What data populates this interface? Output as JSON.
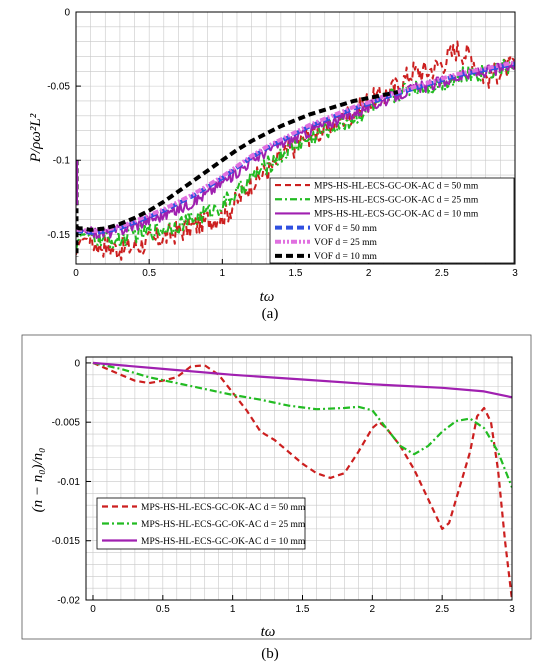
{
  "chart_data": [
    {
      "panel": "a",
      "type": "line",
      "caption": "(a)",
      "xlabel": "tω",
      "ylabel": "P/ρω²L²",
      "xlim": [
        0,
        3
      ],
      "ylim": [
        -0.17,
        0
      ],
      "x_ticks": [
        0,
        0.5,
        1,
        1.5,
        2,
        2.5,
        3
      ],
      "x_tick_labels": [
        "0",
        "0.5",
        "1",
        "1.5",
        "2",
        "2.5",
        "3"
      ],
      "y_ticks": [
        0,
        -0.05,
        -0.1,
        -0.15
      ],
      "y_tick_labels": [
        "0",
        "-0.05",
        "-0.1",
        "-0.15"
      ],
      "grid": true,
      "legend_position": "bottom-right",
      "series": [
        {
          "name": "MPS-HS-HL-ECS-GC-OK-AC d = 50 mm",
          "color": "#cc1f1f",
          "style": "dashed",
          "noise": 0.008,
          "x": [
            0,
            0.02,
            0.05,
            0.1,
            0.2,
            0.3,
            0.4,
            0.5,
            0.6,
            0.7,
            0.8,
            0.9,
            1.0,
            1.1,
            1.2,
            1.3,
            1.4,
            1.5,
            1.6,
            1.7,
            1.8,
            1.9,
            2.0,
            2.1,
            2.2,
            2.3,
            2.4,
            2.5,
            2.6,
            2.7,
            2.8,
            2.9,
            3.0
          ],
          "y": [
            -0.165,
            -0.155,
            -0.152,
            -0.155,
            -0.158,
            -0.16,
            -0.158,
            -0.155,
            -0.152,
            -0.148,
            -0.145,
            -0.14,
            -0.138,
            -0.128,
            -0.115,
            -0.108,
            -0.098,
            -0.09,
            -0.082,
            -0.08,
            -0.072,
            -0.068,
            -0.06,
            -0.057,
            -0.05,
            -0.04,
            -0.04,
            -0.035,
            -0.025,
            -0.03,
            -0.045,
            -0.04,
            -0.035
          ]
        },
        {
          "name": "MPS-HS-HL-ECS-GC-OK-AC d = 25 mm",
          "color": "#22bb22",
          "style": "dashdot",
          "noise": 0.006,
          "x": [
            0,
            0.02,
            0.05,
            0.1,
            0.2,
            0.3,
            0.4,
            0.5,
            0.6,
            0.7,
            0.8,
            0.9,
            1.0,
            1.1,
            1.2,
            1.3,
            1.4,
            1.5,
            1.6,
            1.7,
            1.8,
            1.9,
            2.0,
            2.1,
            2.2,
            2.3,
            2.4,
            2.5,
            2.6,
            2.7,
            2.8,
            2.9,
            3.0
          ],
          "y": [
            -0.16,
            -0.152,
            -0.15,
            -0.152,
            -0.154,
            -0.154,
            -0.15,
            -0.148,
            -0.146,
            -0.143,
            -0.14,
            -0.135,
            -0.13,
            -0.122,
            -0.112,
            -0.104,
            -0.097,
            -0.09,
            -0.085,
            -0.08,
            -0.076,
            -0.072,
            -0.065,
            -0.06,
            -0.055,
            -0.05,
            -0.05,
            -0.048,
            -0.044,
            -0.042,
            -0.04,
            -0.038,
            -0.035
          ]
        },
        {
          "name": "MPS-HS-HL-ECS-GC-OK-AC d = 10 mm",
          "color": "#a020b0",
          "style": "solid",
          "noise": 0.004,
          "x": [
            0,
            0.02,
            0.05,
            0.1,
            0.2,
            0.3,
            0.4,
            0.5,
            0.6,
            0.7,
            0.8,
            0.9,
            1.0,
            1.1,
            1.2,
            1.3,
            1.4,
            1.5,
            1.6,
            1.7,
            1.8,
            1.9,
            2.0,
            2.1,
            2.2,
            2.3,
            2.4,
            2.5,
            2.6,
            2.7,
            2.8,
            2.9,
            3.0
          ],
          "y": [
            -0.15,
            -0.148,
            -0.148,
            -0.149,
            -0.149,
            -0.147,
            -0.144,
            -0.14,
            -0.137,
            -0.133,
            -0.128,
            -0.122,
            -0.115,
            -0.108,
            -0.1,
            -0.094,
            -0.089,
            -0.085,
            -0.08,
            -0.076,
            -0.072,
            -0.068,
            -0.064,
            -0.06,
            -0.056,
            -0.052,
            -0.05,
            -0.047,
            -0.044,
            -0.042,
            -0.04,
            -0.038,
            -0.036
          ]
        },
        {
          "name": "VOF d = 50 mm",
          "color": "#3050e0",
          "style": "thickdash",
          "noise": 0,
          "x": [
            0,
            0.02,
            0.05,
            0.1,
            0.2,
            0.3,
            0.4,
            0.5,
            0.6,
            0.7,
            0.8,
            0.9,
            1.0,
            1.1,
            1.2,
            1.3,
            1.4,
            1.5,
            1.6,
            1.7,
            1.8,
            1.9,
            2.0,
            2.1,
            2.2,
            2.3,
            2.4,
            2.5,
            2.6,
            2.7,
            2.8,
            2.9,
            3.0
          ],
          "y": [
            -0.148,
            -0.148,
            -0.148,
            -0.149,
            -0.148,
            -0.146,
            -0.142,
            -0.138,
            -0.134,
            -0.129,
            -0.124,
            -0.118,
            -0.112,
            -0.105,
            -0.098,
            -0.092,
            -0.087,
            -0.082,
            -0.077,
            -0.073,
            -0.069,
            -0.065,
            -0.062,
            -0.058,
            -0.055,
            -0.052,
            -0.049,
            -0.046,
            -0.043,
            -0.041,
            -0.039,
            -0.037,
            -0.035
          ]
        },
        {
          "name": "VOF d = 25 mm",
          "color": "#e070e0",
          "style": "dashdotdot",
          "noise": 0,
          "x": [
            0,
            0.02,
            0.05,
            0.1,
            0.2,
            0.3,
            0.4,
            0.5,
            0.6,
            0.7,
            0.8,
            0.9,
            1.0,
            1.1,
            1.2,
            1.3,
            1.4,
            1.5,
            1.6,
            1.7,
            1.8,
            1.9,
            2.0,
            2.1,
            2.2,
            2.3,
            2.4,
            2.5,
            2.6,
            2.7,
            2.8,
            2.9,
            3.0
          ],
          "y": [
            -0.147,
            -0.147,
            -0.147,
            -0.148,
            -0.147,
            -0.145,
            -0.141,
            -0.137,
            -0.133,
            -0.128,
            -0.123,
            -0.117,
            -0.111,
            -0.104,
            -0.097,
            -0.091,
            -0.086,
            -0.081,
            -0.076,
            -0.072,
            -0.068,
            -0.064,
            -0.061,
            -0.057,
            -0.054,
            -0.051,
            -0.048,
            -0.045,
            -0.042,
            -0.04,
            -0.038,
            -0.036,
            -0.034
          ]
        },
        {
          "name": "VOF d = 10 mm",
          "color": "#000000",
          "style": "thickdash",
          "noise": 0,
          "x": [
            0,
            0.02,
            0.05,
            0.1,
            0.2,
            0.3,
            0.4,
            0.5,
            0.6,
            0.7,
            0.8,
            0.9,
            1.0,
            1.1,
            1.2,
            1.3,
            1.4,
            1.5,
            1.6,
            1.7,
            1.8,
            1.9,
            2.0,
            2.1,
            2.2
          ],
          "y": [
            -0.145,
            -0.146,
            -0.146,
            -0.147,
            -0.146,
            -0.143,
            -0.139,
            -0.134,
            -0.128,
            -0.121,
            -0.114,
            -0.107,
            -0.1,
            -0.093,
            -0.087,
            -0.082,
            -0.077,
            -0.073,
            -0.069,
            -0.066,
            -0.063,
            -0.06,
            -0.058,
            -0.056,
            -0.054
          ]
        }
      ],
      "spike": {
        "x": 0,
        "y": [
          -0.1,
          -0.165
        ],
        "color": "#000000"
      }
    },
    {
      "panel": "b",
      "type": "line",
      "caption": "(b)",
      "xlabel": "tω",
      "ylabel": "(n − n₀)/n₀",
      "xlim": [
        -0.05,
        3
      ],
      "ylim": [
        -0.02,
        0.0005
      ],
      "x_ticks": [
        0,
        0.5,
        1,
        1.5,
        2,
        2.5,
        3
      ],
      "x_tick_labels": [
        "0",
        "0.5",
        "1",
        "1.5",
        "2",
        "2.5",
        "3"
      ],
      "y_ticks": [
        0,
        -0.005,
        -0.01,
        -0.015,
        -0.02
      ],
      "y_tick_labels": [
        "0",
        "-0.005",
        "-0.01",
        "-0.015",
        "-0.02"
      ],
      "grid": true,
      "legend_position": "bottom-left",
      "series": [
        {
          "name": "MPS-HS-HL-ECS-GC-OK-AC d = 50 mm",
          "color": "#cc1f1f",
          "style": "dashed",
          "x": [
            0,
            0.1,
            0.2,
            0.3,
            0.4,
            0.5,
            0.6,
            0.7,
            0.8,
            0.9,
            1.0,
            1.1,
            1.2,
            1.3,
            1.4,
            1.5,
            1.6,
            1.7,
            1.8,
            1.9,
            2.0,
            2.05,
            2.1,
            2.2,
            2.3,
            2.4,
            2.5,
            2.55,
            2.6,
            2.7,
            2.75,
            2.8,
            2.85,
            2.9,
            2.95,
            3.0
          ],
          "y": [
            0,
            -0.0005,
            -0.001,
            -0.0015,
            -0.0017,
            -0.0015,
            -0.0012,
            -0.0003,
            -0.0002,
            -0.001,
            -0.0025,
            -0.004,
            -0.0058,
            -0.0065,
            -0.0075,
            -0.0085,
            -0.0093,
            -0.0097,
            -0.0093,
            -0.0075,
            -0.0055,
            -0.005,
            -0.0055,
            -0.007,
            -0.009,
            -0.0115,
            -0.014,
            -0.0135,
            -0.0115,
            -0.0075,
            -0.0045,
            -0.0038,
            -0.005,
            -0.009,
            -0.015,
            -0.02
          ]
        },
        {
          "name": "MPS-HS-HL-ECS-GC-OK-AC d = 25 mm",
          "color": "#22bb22",
          "style": "dashdot",
          "x": [
            0,
            0.2,
            0.4,
            0.6,
            0.8,
            1.0,
            1.2,
            1.4,
            1.6,
            1.8,
            1.9,
            2.0,
            2.1,
            2.2,
            2.3,
            2.4,
            2.5,
            2.6,
            2.7,
            2.8,
            2.9,
            3.0
          ],
          "y": [
            0,
            -0.0005,
            -0.0012,
            -0.0017,
            -0.0022,
            -0.0027,
            -0.0031,
            -0.0036,
            -0.0039,
            -0.0038,
            -0.0037,
            -0.004,
            -0.0055,
            -0.007,
            -0.0077,
            -0.007,
            -0.0058,
            -0.0049,
            -0.0047,
            -0.0055,
            -0.0075,
            -0.0105
          ]
        },
        {
          "name": "MPS-HS-HL-ECS-GC-OK-AC d = 10 mm",
          "color": "#a020b0",
          "style": "solid",
          "x": [
            0,
            0.5,
            1.0,
            1.5,
            2.0,
            2.5,
            2.8,
            3.0
          ],
          "y": [
            0,
            -0.0005,
            -0.001,
            -0.0014,
            -0.0018,
            -0.0021,
            -0.0024,
            -0.0029
          ]
        }
      ]
    }
  ]
}
